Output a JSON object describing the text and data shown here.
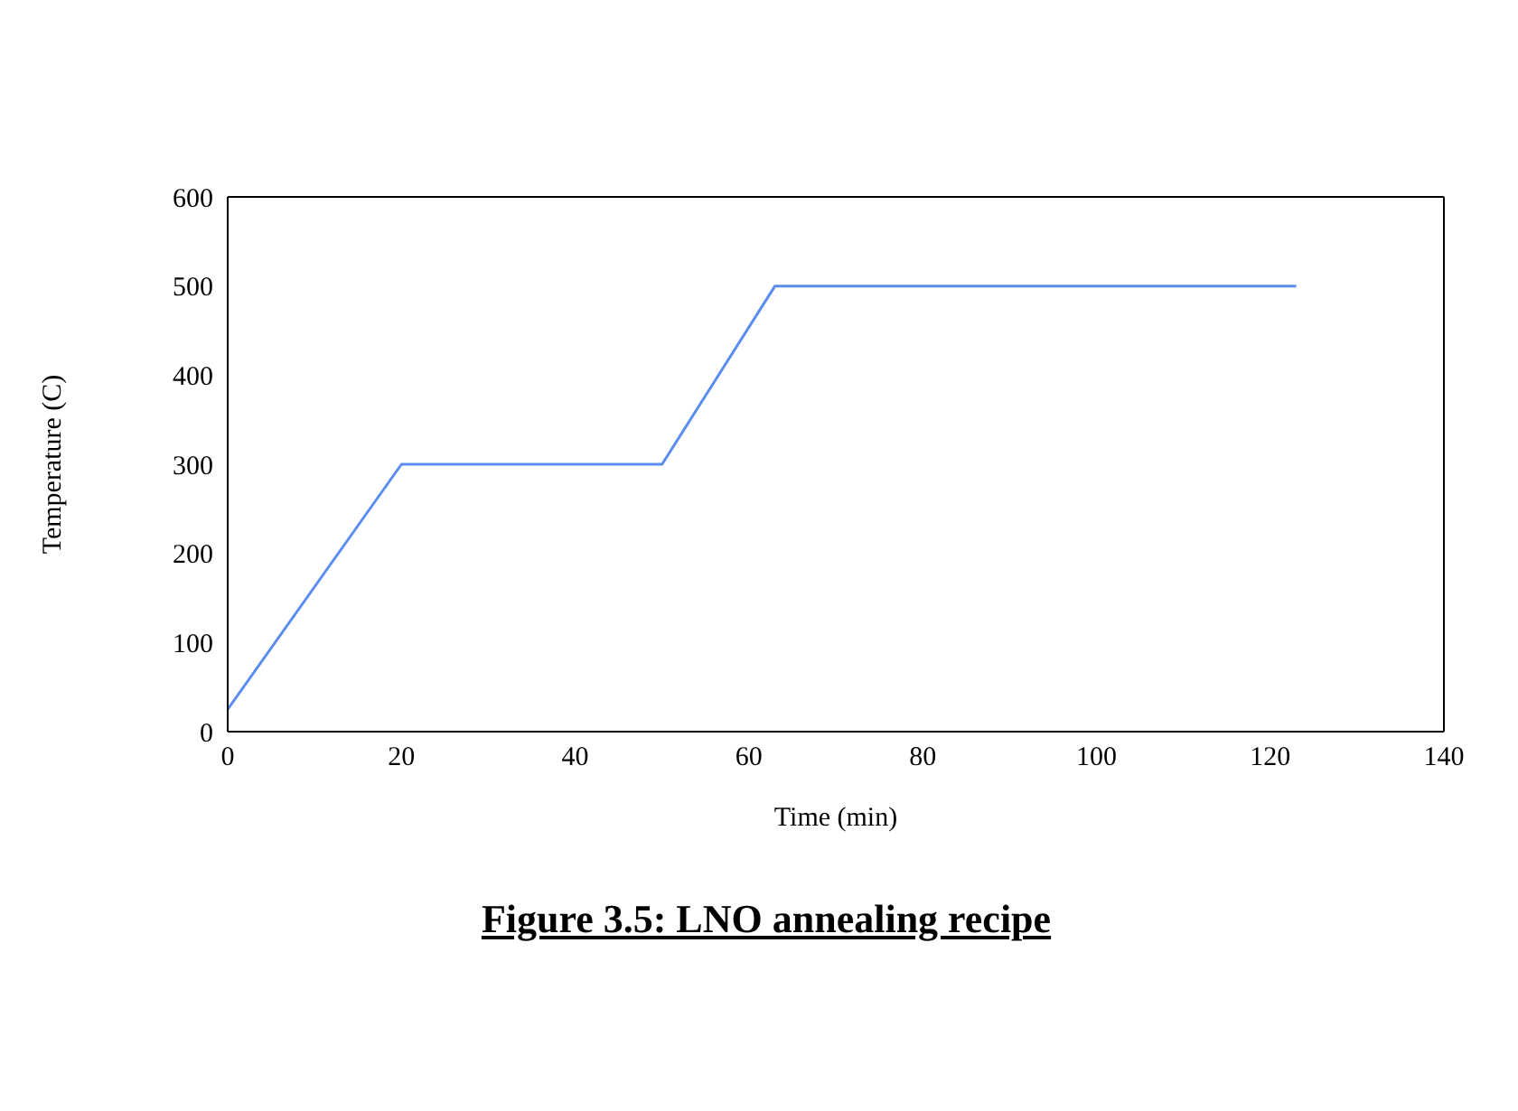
{
  "chart_data": {
    "type": "line",
    "title": "Figure 3.5: LNO annealing recipe",
    "xlabel": "Time (min)",
    "ylabel": "Temperature (C)",
    "x": [
      0,
      20,
      50,
      63,
      123
    ],
    "series": [
      {
        "color": "#5b8def",
        "values": [
          25,
          300,
          300,
          500,
          500
        ]
      }
    ],
    "xlim": [
      0,
      140
    ],
    "xticks": [
      0,
      20,
      40,
      60,
      80,
      100,
      120,
      140
    ],
    "ylim": [
      0,
      600
    ],
    "yticks": [
      0,
      100,
      200,
      300,
      400,
      500,
      600
    ],
    "grid": false,
    "legend": false,
    "marker": "none",
    "line_style": "solid"
  }
}
